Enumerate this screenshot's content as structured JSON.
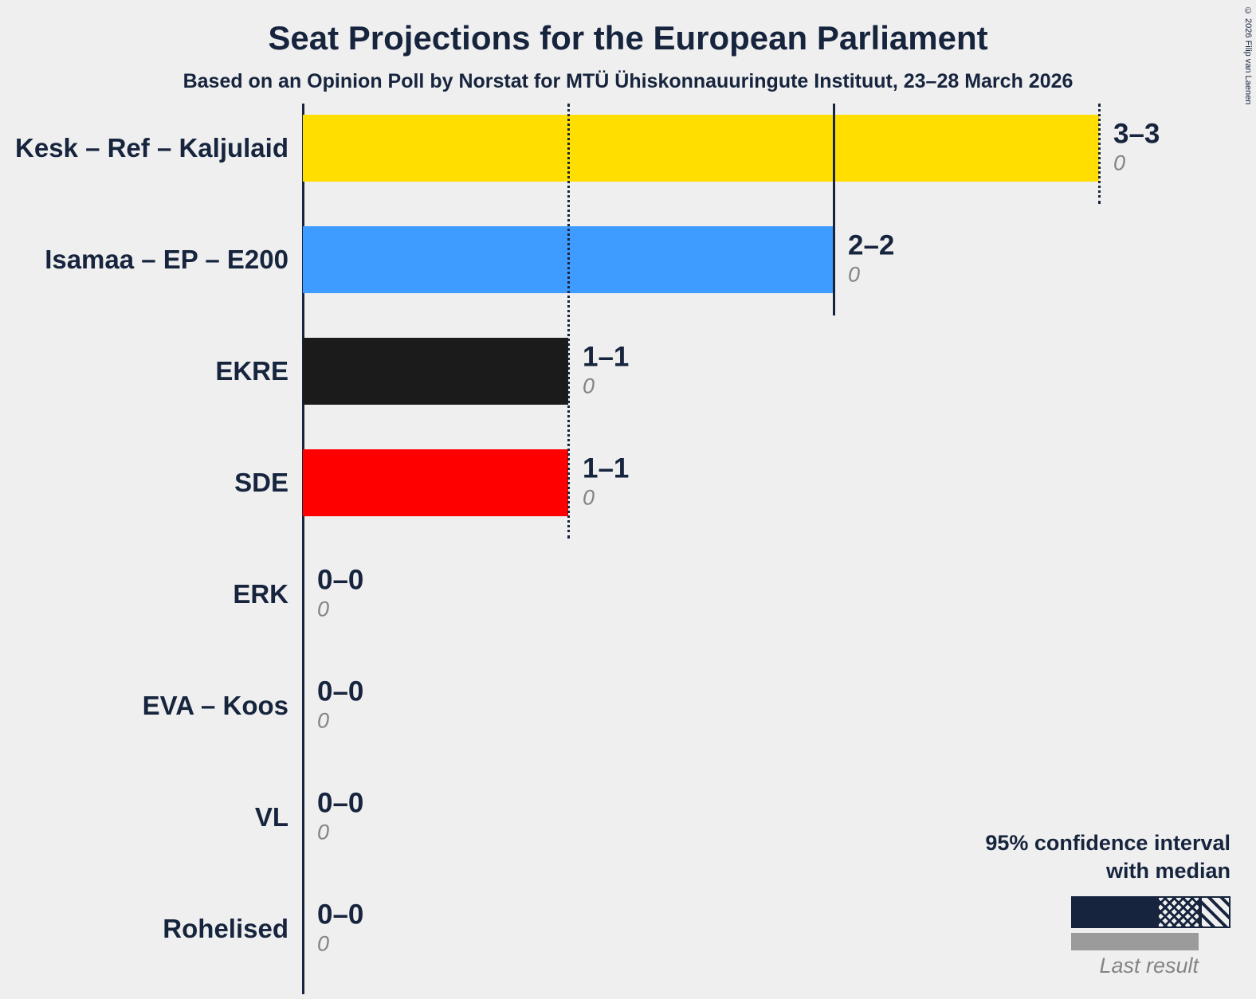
{
  "title": "Seat Projections for the European Parliament",
  "subtitle": "Based on an Opinion Poll by Norstat for MTÜ Ühiskonnauuringute Instituut, 23–28 March 2026",
  "copyright": "© 2026 Filip van Laenen",
  "colors": {
    "background": "#EFEFEF",
    "accent_navy": "#16243D",
    "annotation_gray": "#848484",
    "last_result_bar": "#9B9B9B"
  },
  "legend": {
    "line1": "95% confidence interval",
    "line2": "with median",
    "last_result": "Last result"
  },
  "chart_data": {
    "type": "bar",
    "orientation": "horizontal",
    "title": "Seat Projections for the European Parliament",
    "xlabel": "seats",
    "xlim": [
      0,
      3.6
    ],
    "grid": "vertical ticks at integer seat counts",
    "legend_position": "bottom-right",
    "categories": [
      "Kesk – Ref – Kaljulaid",
      "Isamaa – EP – E200",
      "EKRE",
      "SDE",
      "ERK",
      "EVA – Koos",
      "VL",
      "Rohelised"
    ],
    "series": [
      {
        "name": "95% confidence interval with median (seats)",
        "values": [
          3,
          2,
          1,
          1,
          0,
          0,
          0,
          0
        ]
      },
      {
        "name": "Last result (seats)",
        "values": [
          0,
          0,
          0,
          0,
          0,
          0,
          0,
          0
        ]
      }
    ],
    "rows": [
      {
        "label": "Kesk – Ref – Kaljulaid",
        "low": 3,
        "high": 3,
        "seats": 3,
        "range_label": "3–3",
        "last_result": "0",
        "color": "#FFDE00"
      },
      {
        "label": "Isamaa – EP – E200",
        "low": 2,
        "high": 2,
        "seats": 2,
        "range_label": "2–2",
        "last_result": "0",
        "color": "#3E9BFF"
      },
      {
        "label": "EKRE",
        "low": 1,
        "high": 1,
        "seats": 1,
        "range_label": "1–1",
        "last_result": "0",
        "color": "#1B1B1B"
      },
      {
        "label": "SDE",
        "low": 1,
        "high": 1,
        "seats": 1,
        "range_label": "1–1",
        "last_result": "0",
        "color": "#FF0000"
      },
      {
        "label": "ERK",
        "low": 0,
        "high": 0,
        "seats": 0,
        "range_label": "0–0",
        "last_result": "0",
        "color": "#16243D"
      },
      {
        "label": "EVA – Koos",
        "low": 0,
        "high": 0,
        "seats": 0,
        "range_label": "0–0",
        "last_result": "0",
        "color": "#16243D"
      },
      {
        "label": "VL",
        "low": 0,
        "high": 0,
        "seats": 0,
        "range_label": "0–0",
        "last_result": "0",
        "color": "#16243D"
      },
      {
        "label": "Rohelised",
        "low": 0,
        "high": 0,
        "seats": 0,
        "range_label": "0–0",
        "last_result": "0",
        "color": "#16243D"
      }
    ],
    "gridlines": [
      {
        "seat": 1,
        "style": "dotted",
        "rows_spanned": 4
      },
      {
        "seat": 2,
        "style": "solid",
        "rows_spanned": 2
      },
      {
        "seat": 3,
        "style": "dotted",
        "rows_spanned": 1
      }
    ]
  }
}
